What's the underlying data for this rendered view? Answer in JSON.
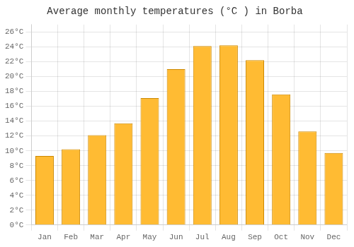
{
  "chart_data": {
    "type": "bar",
    "title": "Average monthly temperatures (°C ) in Borba",
    "categories": [
      "Jan",
      "Feb",
      "Mar",
      "Apr",
      "May",
      "Jun",
      "Jul",
      "Aug",
      "Sep",
      "Oct",
      "Nov",
      "Dec"
    ],
    "values": [
      9.3,
      10.2,
      12.1,
      13.7,
      17.1,
      21.0,
      24.1,
      24.2,
      22.2,
      17.6,
      12.6,
      9.7
    ],
    "color": "#FFBB33",
    "ylim": [
      0,
      27
    ],
    "yticks": [
      {
        "value": 0,
        "label": "0°C"
      },
      {
        "value": 2,
        "label": "2°C"
      },
      {
        "value": 4,
        "label": "4°C"
      },
      {
        "value": 6,
        "label": "6°C"
      },
      {
        "value": 8,
        "label": "8°C"
      },
      {
        "value": 10,
        "label": "10°C"
      },
      {
        "value": 12,
        "label": "12°C"
      },
      {
        "value": 14,
        "label": "14°C"
      },
      {
        "value": 16,
        "label": "16°C"
      },
      {
        "value": 18,
        "label": "18°C"
      },
      {
        "value": 20,
        "label": "20°C"
      },
      {
        "value": 22,
        "label": "22°C"
      },
      {
        "value": 24,
        "label": "24°C"
      },
      {
        "value": 26,
        "label": "26°C"
      }
    ],
    "grid": true
  }
}
